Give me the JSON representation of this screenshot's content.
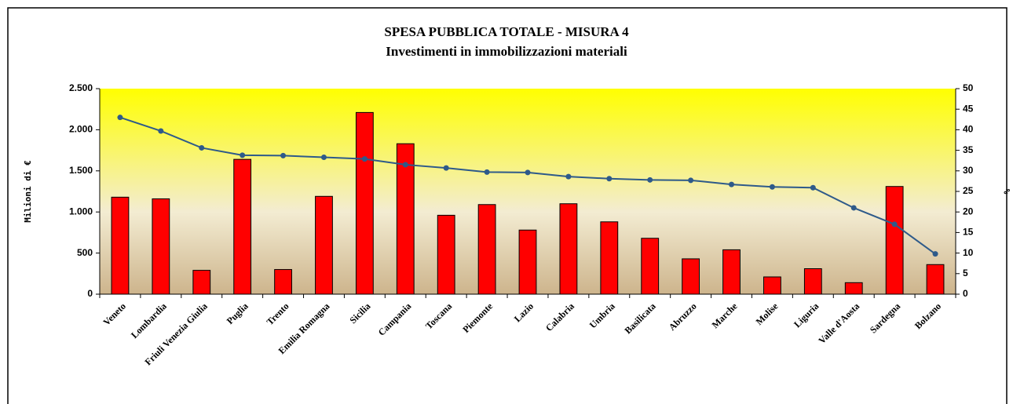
{
  "chart_data": {
    "type": "bar",
    "title": "SPESA PUBBLICA TOTALE  - MISURA 4",
    "subtitle": "Investimenti in immobilizzazioni materiali",
    "y_label": "Milioni di €",
    "y2_label": "%",
    "categories": [
      "Veneto",
      "Lombardia",
      "Friuli Venezia Giulia",
      "Puglia",
      "Trento",
      "Emilia Romagna",
      "Sicilia",
      "Campania",
      "Toscana",
      "Piemonte",
      "Lazio",
      "Calabria",
      "Umbria",
      "Basilicata",
      "Abruzzo",
      "Marche",
      "Molise",
      "Liguria",
      "Valle d'Aosta",
      "Sardegna",
      "Bolzano"
    ],
    "series": [
      {
        "type": "bar",
        "color": "#ff0000",
        "values": [
          1180,
          1160,
          290,
          1640,
          300,
          1190,
          2210,
          1830,
          960,
          1090,
          780,
          1100,
          880,
          680,
          430,
          540,
          210,
          310,
          140,
          1310,
          360
        ]
      },
      {
        "type": "line",
        "axis": "y2",
        "color": "#2e5a8a",
        "values": [
          43,
          39.7,
          35.6,
          33.8,
          33.7,
          33.3,
          32.9,
          31.5,
          30.7,
          29.7,
          29.6,
          28.6,
          28.1,
          27.8,
          27.7,
          26.7,
          26.1,
          25.9,
          21,
          17,
          9.8
        ]
      }
    ],
    "ylim": [
      0,
      2500
    ],
    "yticks": [
      0,
      500,
      {
        "value": 1000,
        "label": "1.000"
      },
      {
        "value": 1500,
        "label": "1.500"
      },
      {
        "value": 2000,
        "label": "2.000"
      },
      {
        "value": 2500,
        "label": "2.500"
      }
    ],
    "y2lim": [
      0,
      50
    ],
    "y2ticks": [
      0,
      5,
      10,
      15,
      20,
      25,
      30,
      35,
      40,
      45,
      50
    ]
  }
}
